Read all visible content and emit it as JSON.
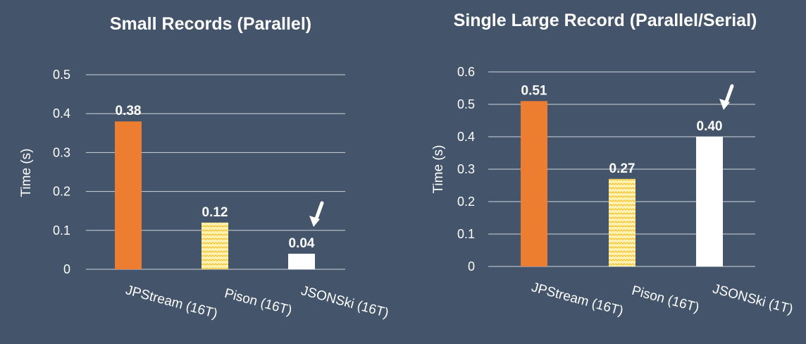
{
  "colors": {
    "background": "#44546a",
    "jpstream": "#ed7d31",
    "pison_fill": "#fff2b3",
    "pison_pattern": "#f2c230",
    "jsonski": "#ffffff",
    "arrow": "#ffffff"
  },
  "chart_data": [
    {
      "type": "bar",
      "title": "Small Records (Parallel)",
      "ylabel": "Time (s)",
      "xlabel": "",
      "ylim": [
        0,
        0.5
      ],
      "yticks": [
        "0",
        "0.1",
        "0.2",
        "0.3",
        "0.4",
        "0.5"
      ],
      "grid": true,
      "categories": [
        "JPStream (16T)",
        "Pison (16T)",
        "JSONSki (16T)"
      ],
      "values": [
        0.38,
        0.12,
        0.04
      ],
      "data_labels": [
        "0.38",
        "0.12",
        "0.04"
      ],
      "bar_styles": [
        "solid-orange",
        "zigzag-yellow",
        "solid-white"
      ],
      "annotations": [
        {
          "type": "arrow",
          "target": "JSONSki (16T)",
          "icon": "arrow-down-left"
        }
      ]
    },
    {
      "type": "bar",
      "title": "Single Large Record (Parallel/Serial)",
      "ylabel": "Time (s)",
      "xlabel": "",
      "ylim": [
        0,
        0.6
      ],
      "yticks": [
        "0",
        "0.1",
        "0.2",
        "0.3",
        "0.4",
        "0.5",
        "0.6"
      ],
      "grid": true,
      "categories": [
        "JPStream (16T)",
        "Pison (16T)",
        "JSONSki (1T)"
      ],
      "values": [
        0.51,
        0.27,
        0.4
      ],
      "data_labels": [
        "0.51",
        "0.27",
        "0.40"
      ],
      "bar_styles": [
        "solid-orange",
        "zigzag-yellow",
        "solid-white"
      ],
      "annotations": [
        {
          "type": "arrow",
          "target": "JSONSki (1T)",
          "icon": "arrow-down-left"
        }
      ]
    }
  ]
}
